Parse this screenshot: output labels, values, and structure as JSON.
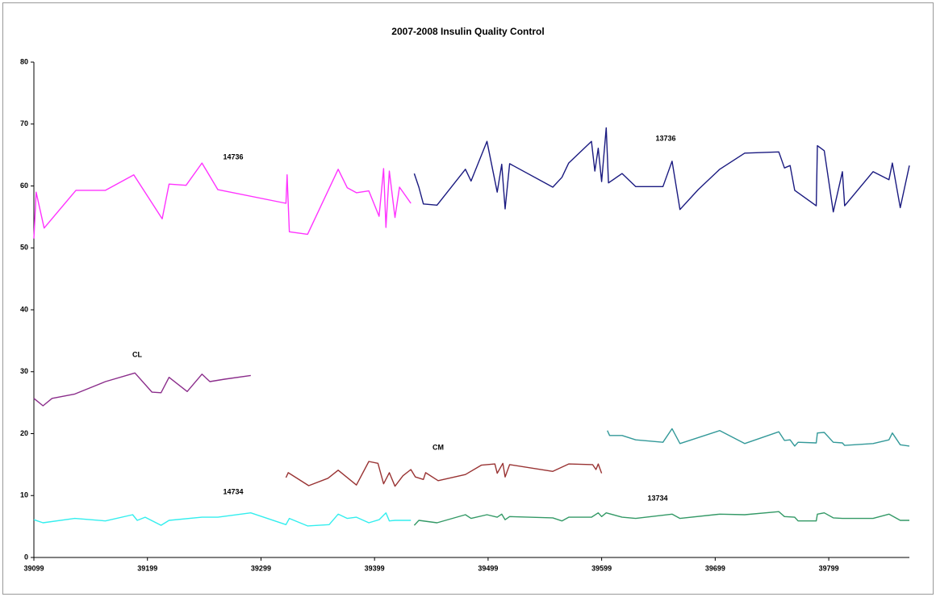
{
  "chart_data": {
    "type": "line",
    "title": "2007-2008 Insulin Quality Control",
    "xlim": [
      39099,
      39870
    ],
    "ylim": [
      0,
      80
    ],
    "xticks": [
      39099,
      39199,
      39299,
      39399,
      39499,
      39599,
      39699,
      39799
    ],
    "yticks": [
      0,
      10,
      20,
      30,
      40,
      50,
      60,
      70,
      80
    ],
    "grid": false,
    "series": [
      {
        "name": "14736",
        "color": "#ff33ff",
        "x": [
          39099,
          39101,
          39108,
          39136,
          39162,
          39187,
          39212,
          39218,
          39233,
          39247,
          39261,
          39321,
          39322,
          39324,
          39340,
          39367,
          39375,
          39383,
          39394,
          39403,
          39407,
          39409,
          39412,
          39417,
          39421,
          39431
        ],
        "values": [
          51.5,
          59,
          53.2,
          59.3,
          59.3,
          61.8,
          54.7,
          60.3,
          60.1,
          63.7,
          59.4,
          57.2,
          61.8,
          52.6,
          52.2,
          62.7,
          59.7,
          58.9,
          59.2,
          55.1,
          62.8,
          53.3,
          62.4,
          54.9,
          59.8,
          57.2
        ]
      },
      {
        "name": "13736",
        "color": "#1a1a80",
        "x": [
          39434,
          39438,
          39442,
          39454,
          39479,
          39484,
          39498,
          39507,
          39511,
          39514,
          39518,
          39556,
          39564,
          39570,
          39590,
          39593,
          39596,
          39599,
          39603,
          39605,
          39617,
          39629,
          39653,
          39661,
          39668,
          39684,
          39703,
          39725,
          39755,
          39760,
          39765,
          39769,
          39788,
          39789,
          39795,
          39803,
          39811,
          39813,
          39838,
          39852,
          39855,
          39862,
          39870
        ],
        "values": [
          62,
          59.8,
          57.1,
          56.9,
          62.7,
          60.8,
          67.2,
          59,
          63.5,
          56.3,
          63.6,
          59.8,
          61.4,
          63.7,
          67.2,
          62.4,
          66.1,
          60.7,
          69.4,
          60.5,
          62,
          59.9,
          59.9,
          64,
          56.2,
          59.4,
          62.7,
          65.3,
          65.5,
          62.9,
          63.3,
          59.3,
          56.8,
          66.5,
          65.7,
          55.8,
          62.3,
          56.8,
          62.3,
          61,
          63.7,
          56.5,
          63.3
        ]
      },
      {
        "name": "CL",
        "color": "#8b2d8b",
        "x": [
          39099,
          39107,
          39115,
          39135,
          39162,
          39188,
          39203,
          39211,
          39218,
          39234,
          39247,
          39254,
          39267,
          39290
        ],
        "values": [
          25.7,
          24.5,
          25.7,
          26.4,
          28.4,
          29.8,
          26.7,
          26.6,
          29.1,
          26.8,
          29.6,
          28.4,
          28.8,
          29.4
        ]
      },
      {
        "name": "CM",
        "color": "#993333",
        "x": [
          39321,
          39323,
          39341,
          39358,
          39367,
          39383,
          39394,
          39402,
          39407,
          39412,
          39417,
          39424,
          39431,
          39435,
          39442,
          39444,
          39455,
          39479,
          39493,
          39505,
          39507,
          39512,
          39514,
          39518,
          39556,
          39570,
          39591,
          39594,
          39596,
          39599
        ],
        "values": [
          12.9,
          13.7,
          11.6,
          12.8,
          14.1,
          11.7,
          15.5,
          15.2,
          11.9,
          13.7,
          11.5,
          13.2,
          14.2,
          13,
          12.6,
          13.7,
          12.4,
          13.4,
          14.9,
          15.1,
          13.6,
          15.2,
          13,
          15,
          13.9,
          15.1,
          15,
          14.2,
          15.1,
          13.6
        ]
      },
      {
        "color": "#339999",
        "x": [
          39604,
          39606,
          39617,
          39629,
          39653,
          39661,
          39668,
          39703,
          39725,
          39755,
          39760,
          39765,
          39769,
          39772,
          39788,
          39789,
          39795,
          39803,
          39811,
          39813,
          39838,
          39852,
          39855,
          39862,
          39870
        ],
        "values": [
          20.5,
          19.7,
          19.7,
          19,
          18.6,
          20.8,
          18.4,
          20.5,
          18.4,
          20.3,
          18.9,
          19,
          18,
          18.6,
          18.5,
          20.1,
          20.2,
          18.6,
          18.5,
          18.1,
          18.4,
          19,
          20.1,
          18.2,
          18
        ]
      },
      {
        "name": "14734",
        "color": "#33eeee",
        "x": [
          39099,
          39107,
          39135,
          39162,
          39186,
          39190,
          39197,
          39211,
          39218,
          39247,
          39261,
          39290,
          39321,
          39324,
          39340,
          39359,
          39367,
          39375,
          39383,
          39394,
          39403,
          39409,
          39412,
          39417,
          39431
        ],
        "values": [
          6.1,
          5.6,
          6.3,
          5.9,
          6.9,
          6,
          6.5,
          5.2,
          6,
          6.5,
          6.5,
          7.2,
          5.3,
          6.3,
          5.1,
          5.3,
          7,
          6.3,
          6.5,
          5.6,
          6.1,
          7.2,
          5.9,
          6,
          6
        ]
      },
      {
        "name": "13734",
        "color": "#339966",
        "x": [
          39434,
          39438,
          39454,
          39479,
          39484,
          39498,
          39507,
          39511,
          39514,
          39518,
          39556,
          39564,
          39570,
          39590,
          39596,
          39599,
          39603,
          39617,
          39629,
          39661,
          39668,
          39703,
          39725,
          39755,
          39760,
          39769,
          39772,
          39788,
          39789,
          39795,
          39803,
          39811,
          39838,
          39852,
          39862,
          39870
        ],
        "values": [
          5.2,
          6,
          5.6,
          6.9,
          6.3,
          6.9,
          6.5,
          7,
          6.1,
          6.6,
          6.4,
          5.9,
          6.5,
          6.5,
          7.2,
          6.6,
          7.2,
          6.5,
          6.3,
          7,
          6.3,
          7,
          6.9,
          7.4,
          6.6,
          6.5,
          5.9,
          5.9,
          7,
          7.2,
          6.4,
          6.3,
          6.3,
          7,
          6,
          6
        ]
      }
    ]
  }
}
